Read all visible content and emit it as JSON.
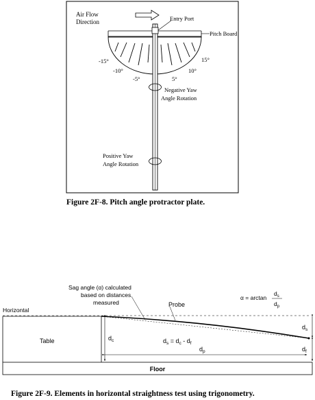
{
  "figure1": {
    "airflow_line1": "Air Flow",
    "airflow_line2": "Direction",
    "entry_port": "Entry Port",
    "pitch_board": "Pitch Board",
    "angle_m15": "-15°",
    "angle_m10": "-10°",
    "angle_m5": "-5°",
    "angle_5": "5°",
    "angle_10": "10°",
    "angle_15": "15°",
    "neg_yaw_line1": "Negative Yaw",
    "neg_yaw_line2": "Angle Rotation",
    "pos_yaw_line1": "Positive Yaw",
    "pos_yaw_line2": "Angle Rotation",
    "caption": "Figure 2F-8.  Pitch angle protractor plate."
  },
  "figure2": {
    "sag_line1": "Sag angle (α) calculated",
    "sag_line2": "based on distances",
    "sag_line3": "measured",
    "formula_lhs": "α = arctan",
    "formula_num": "d",
    "formula_num_sub": "s",
    "formula_den": "d",
    "formula_den_sub": "p",
    "horizontal": "Horizontal",
    "probe": "Probe",
    "table": "Table",
    "dc": "d",
    "dc_sub": "c",
    "ds_eq": "d",
    "ds_eq_sub": "s",
    "ds_eq_rest": " = d",
    "ds_eq_rest_sub": "c",
    "ds_eq_minus": " - d",
    "ds_eq_minus_sub": "f",
    "dp": "d",
    "dp_sub": "p",
    "ds_right": "d",
    "ds_right_sub": "s",
    "df_right": "d",
    "df_right_sub": "f",
    "floor": "Floor",
    "caption": "Figure 2F-9.  Elements in horizontal straightness test using trigonometry."
  }
}
